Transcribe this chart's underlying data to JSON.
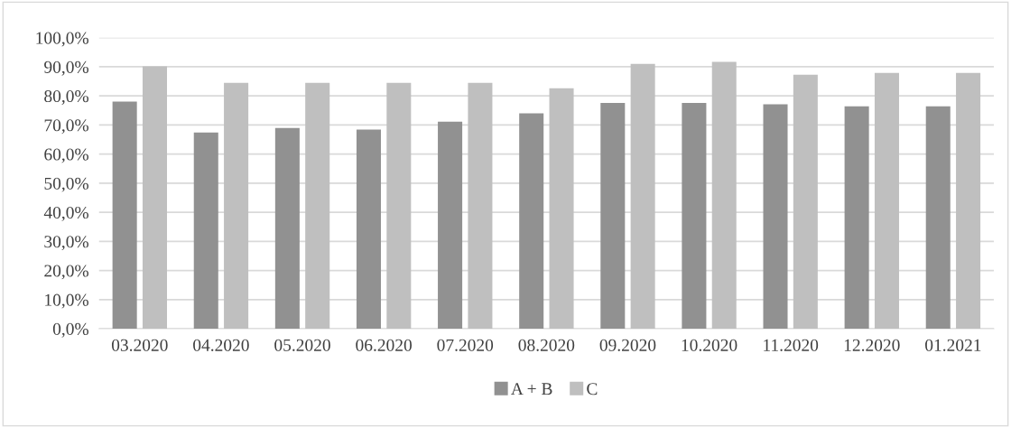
{
  "chart_data": {
    "type": "bar",
    "categories": [
      "03.2020",
      "04.2020",
      "05.2020",
      "06.2020",
      "07.2020",
      "08.2020",
      "09.2020",
      "10.2020",
      "11.2020",
      "12.2020",
      "01.2021"
    ],
    "series": [
      {
        "name": "A + B",
        "color": "#919191",
        "values": [
          78.0,
          67.4,
          69.0,
          68.4,
          71.1,
          74.0,
          77.6,
          77.6,
          77.1,
          76.4,
          76.4
        ]
      },
      {
        "name": "C",
        "color": "#bfbfbf",
        "values": [
          90.1,
          84.5,
          84.5,
          84.5,
          84.5,
          82.6,
          91.0,
          91.7,
          87.3,
          87.9,
          87.9
        ]
      }
    ],
    "ylim": [
      0,
      100
    ],
    "yticks": [
      {
        "value": 0,
        "label": "0,0%"
      },
      {
        "value": 10,
        "label": "10,0%"
      },
      {
        "value": 20,
        "label": "20,0%"
      },
      {
        "value": 30,
        "label": "30,0%"
      },
      {
        "value": 40,
        "label": "40,0%"
      },
      {
        "value": 50,
        "label": "50,0%"
      },
      {
        "value": 60,
        "label": "60,0%"
      },
      {
        "value": 70,
        "label": "70,0%"
      },
      {
        "value": 80,
        "label": "80,0%"
      },
      {
        "value": 90,
        "label": "90,0%"
      },
      {
        "value": 100,
        "label": "100,0%"
      }
    ],
    "grid": "y",
    "legend": "bottom"
  }
}
